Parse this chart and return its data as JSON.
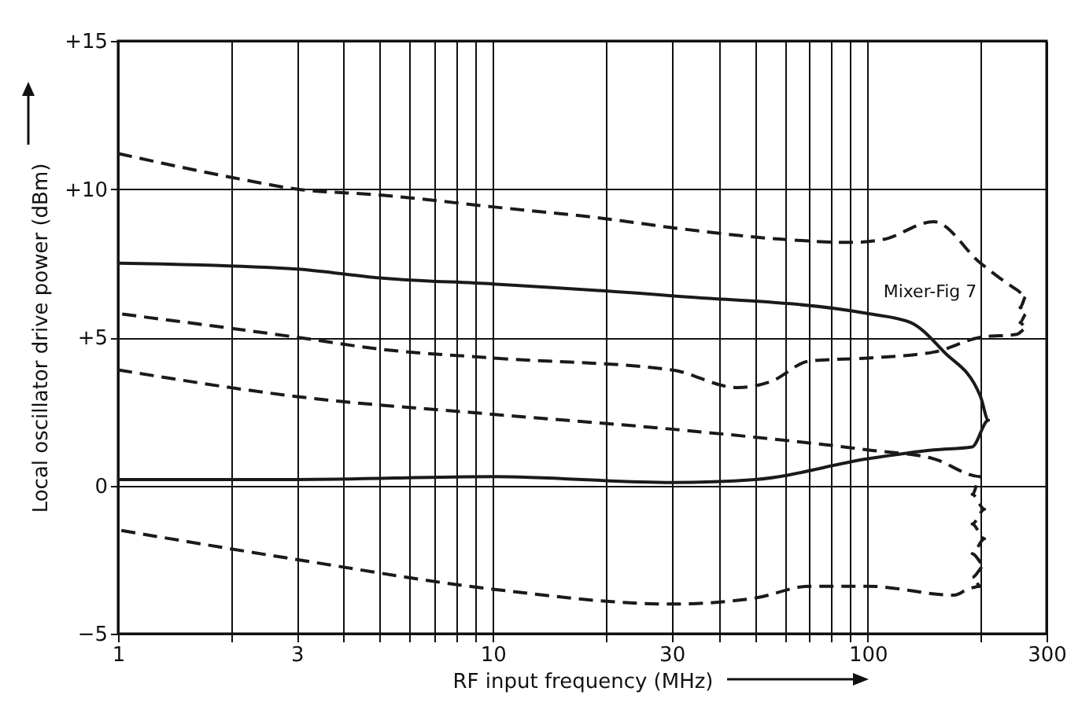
{
  "chart_data": {
    "type": "line",
    "xlabel": "RF input frequency (MHz)",
    "ylabel": "Local oscillator drive power (dBm)",
    "log": "x",
    "xlim": [
      1,
      300
    ],
    "ylim": [
      -5,
      15
    ],
    "xticks": [
      1,
      {
        "value": 2,
        "label": null
      },
      3,
      {
        "value": 4,
        "label": null
      },
      {
        "value": 5,
        "label": null
      },
      {
        "value": 6,
        "label": null
      },
      {
        "value": 7,
        "label": null
      },
      {
        "value": 8,
        "label": null
      },
      {
        "value": 9,
        "label": null
      },
      10,
      {
        "value": 20,
        "label": null
      },
      30,
      {
        "value": 40,
        "label": null
      },
      {
        "value": 50,
        "label": null
      },
      {
        "value": 60,
        "label": null
      },
      {
        "value": 70,
        "label": null
      },
      {
        "value": 80,
        "label": null
      },
      {
        "value": 90,
        "label": null
      },
      100,
      {
        "value": 200,
        "label": null
      },
      300
    ],
    "yticks": [
      {
        "value": -5,
        "label": "−5"
      },
      0,
      {
        "value": 5,
        "label": "+5"
      },
      {
        "value": 10,
        "label": "+10"
      },
      {
        "value": 15,
        "label": "+15"
      }
    ],
    "grid": true,
    "series": [
      {
        "color": "#1a1a1a",
        "line_style": "dashed",
        "x": [
          1,
          2,
          3,
          5,
          10,
          20,
          30,
          60,
          90,
          110,
          150,
          200,
          250,
          265,
          255,
          265,
          255,
          265,
          250,
          200,
          150,
          100,
          70,
          55,
          45,
          30,
          10,
          5,
          3,
          1
        ],
        "values": [
          11.2,
          10.4,
          10.0,
          9.8,
          9.4,
          9.0,
          8.7,
          8.3,
          8.2,
          8.3,
          8.9,
          7.5,
          6.6,
          6.4,
          6.0,
          5.8,
          5.5,
          5.3,
          5.1,
          5.0,
          4.5,
          4.3,
          4.2,
          3.5,
          3.3,
          3.9,
          4.3,
          4.6,
          5.0,
          5.8
        ]
      },
      {
        "color": "#1a1a1a",
        "line_style": "solid",
        "x": [
          1,
          3,
          5,
          10,
          30,
          100,
          130,
          160,
          200,
          210,
          190,
          150,
          100,
          50,
          30,
          10,
          3,
          1
        ],
        "values": [
          7.5,
          7.3,
          7.0,
          6.8,
          6.4,
          5.8,
          5.5,
          4.5,
          3.0,
          2.2,
          1.3,
          1.2,
          0.9,
          0.2,
          0.1,
          0.3,
          0.2,
          0.2
        ]
      },
      {
        "color": "#1a1a1a",
        "line_style": "dashed",
        "x": [
          1,
          3,
          10,
          30,
          100,
          150,
          200,
          190,
          205,
          190,
          205,
          190,
          205,
          190,
          200,
          185,
          170,
          100,
          70,
          50,
          30,
          10,
          3,
          1
        ],
        "values": [
          3.9,
          3.0,
          2.4,
          1.9,
          1.2,
          0.9,
          0.3,
          -0.3,
          -0.8,
          -1.3,
          -1.8,
          -2.3,
          -2.7,
          -3.1,
          -3.4,
          -3.5,
          -3.7,
          -3.4,
          -3.4,
          -3.8,
          -4.0,
          -3.5,
          -2.5,
          -1.5
        ]
      }
    ],
    "annotations": [
      "Mixer-Fig 7"
    ]
  }
}
